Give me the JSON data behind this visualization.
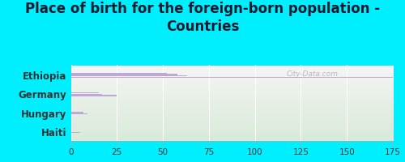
{
  "title": "Place of birth for the foreign-born population -\nCountries",
  "categories": [
    "Ethiopia",
    "Germany",
    "Hungary",
    "Haiti"
  ],
  "bars_config": [
    [
      175,
      63,
      58,
      52
    ],
    [
      25,
      17,
      15
    ],
    [
      9,
      7
    ],
    [
      5
    ]
  ],
  "bar_color": "#c0a8d4",
  "bar_height": 0.055,
  "bg_outer": "#00efff",
  "bg_inner_top": "#f5f5f5",
  "bg_inner_bottom": "#d8ead8",
  "xlim": [
    0,
    175
  ],
  "xticks": [
    0,
    25,
    50,
    75,
    100,
    125,
    150,
    175
  ],
  "label_fontsize": 8.5,
  "title_fontsize": 12,
  "title_color": "#1a1a2e",
  "watermark": "City-Data.com"
}
